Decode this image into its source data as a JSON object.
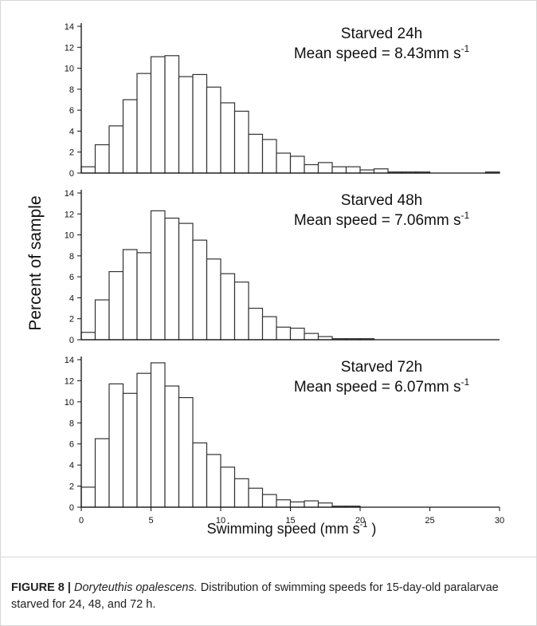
{
  "chart_data": [
    {
      "type": "bar",
      "panel": "Starved 24h",
      "annotation_title": "Starved 24h",
      "annotation_stat": "Mean speed = 8.43mm s",
      "annotation_stat_sup": "-1",
      "bin_width": 1,
      "x_start": 0,
      "values": [
        0.6,
        2.7,
        4.5,
        7.0,
        9.5,
        11.1,
        11.2,
        9.2,
        9.4,
        8.2,
        6.7,
        5.9,
        3.7,
        3.2,
        1.9,
        1.6,
        0.8,
        1.0,
        0.6,
        0.6,
        0.3,
        0.4,
        0.1,
        0.1,
        0.1,
        0,
        0,
        0,
        0,
        0.1
      ],
      "ylim": [
        0,
        14
      ],
      "yticks": [
        "0",
        "2",
        "4",
        "6",
        "8",
        "10",
        "12",
        "14"
      ]
    },
    {
      "type": "bar",
      "panel": "Starved 48h",
      "annotation_title": "Starved 48h",
      "annotation_stat": "Mean speed = 7.06mm s",
      "annotation_stat_sup": "-1",
      "bin_width": 1,
      "x_start": 0,
      "values": [
        0.7,
        3.8,
        6.5,
        8.6,
        8.3,
        12.3,
        11.6,
        11.1,
        9.5,
        7.7,
        6.3,
        5.5,
        3.0,
        2.2,
        1.2,
        1.1,
        0.6,
        0.3,
        0.1,
        0.1,
        0.1
      ],
      "ylim": [
        0,
        14
      ],
      "yticks": [
        "0",
        "2",
        "4",
        "6",
        "8",
        "10",
        "12",
        "14"
      ]
    },
    {
      "type": "bar",
      "panel": "Starved 72h",
      "annotation_title": "Starved 72h",
      "annotation_stat": "Mean speed = 6.07mm s",
      "annotation_stat_sup": "-1",
      "bin_width": 1,
      "x_start": 0,
      "values": [
        1.9,
        6.5,
        11.7,
        10.8,
        12.7,
        13.7,
        11.5,
        10.4,
        6.1,
        5.0,
        3.8,
        2.7,
        1.8,
        1.2,
        0.7,
        0.5,
        0.6,
        0.4,
        0.1,
        0.1
      ],
      "ylim": [
        0,
        14
      ],
      "yticks": [
        "0",
        "2",
        "4",
        "6",
        "8",
        "10",
        "12",
        "14"
      ]
    }
  ],
  "axes": {
    "ylabel": "Percent of sample",
    "xlabel": "Swimming speed (mm s",
    "xlabel_sup": "-1",
    "xlabel_close": ")",
    "xlim": [
      0,
      30
    ],
    "xticks": [
      "0",
      "5",
      "10",
      "15",
      "20",
      "25",
      "30"
    ]
  },
  "caption": {
    "lead": "FIGURE 8 |",
    "species": "Doryteuthis opalescens.",
    "text": " Distribution of swimming speeds for 15-day-old paralarvae starved for 24, 48, and 72 h."
  },
  "colors": {
    "bar_fill": "#ffffff",
    "bar_stroke": "#333333",
    "axis": "#111111",
    "frame": "#d6d6d6"
  }
}
